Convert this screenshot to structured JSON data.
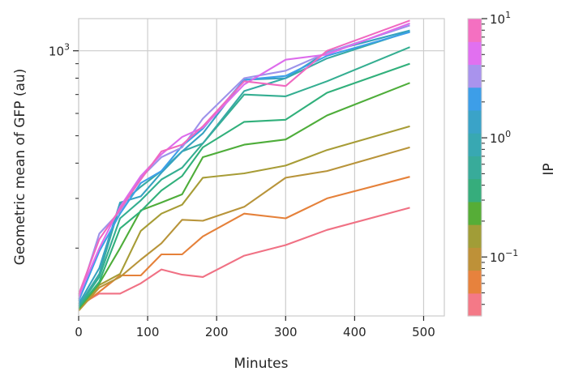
{
  "chart_data": {
    "type": "line",
    "xlabel": "Minutes",
    "ylabel": "Geometric mean of GFP (au)",
    "xlim": [
      0,
      530
    ],
    "ylim": [
      115,
      1300
    ],
    "yscale": "log",
    "grid": true,
    "x_ticks": [
      0,
      100,
      200,
      300,
      400,
      500
    ],
    "y_major_ticks": [
      {
        "value": 1000,
        "label": "10^3"
      }
    ],
    "y_minor_ticks": [
      200,
      300,
      400,
      500,
      600,
      700,
      800,
      900
    ],
    "x": [
      0,
      30,
      60,
      90,
      120,
      150,
      180,
      240,
      300,
      360,
      480
    ],
    "series": [
      {
        "color": "#f07184",
        "values": [
          125,
          138,
          138,
          150,
          168,
          161,
          158,
          188,
          205,
          232,
          278
        ]
      },
      {
        "color": "#e5813a",
        "values": [
          123,
          140,
          160,
          160,
          190,
          190,
          220,
          265,
          255,
          300,
          358
        ]
      },
      {
        "color": "#b8943a",
        "values": [
          120,
          145,
          158,
          182,
          208,
          252,
          250,
          280,
          355,
          375,
          455
        ]
      },
      {
        "color": "#a79c36",
        "values": [
          121,
          148,
          162,
          230,
          265,
          285,
          355,
          368,
          392,
          445,
          540
        ]
      },
      {
        "color": "#4ead3a",
        "values": [
          122,
          150,
          200,
          272,
          290,
          310,
          420,
          465,
          485,
          590,
          770
        ]
      },
      {
        "color": "#31b07b",
        "values": [
          123,
          152,
          235,
          270,
          320,
          360,
          455,
          560,
          570,
          710,
          900
        ]
      },
      {
        "color": "#34ae91",
        "values": [
          124,
          158,
          255,
          295,
          350,
          385,
          470,
          700,
          690,
          780,
          1030
        ]
      },
      {
        "color": "#37aaa4",
        "values": [
          125,
          162,
          285,
          330,
          375,
          440,
          470,
          720,
          800,
          940,
          1170
        ]
      },
      {
        "color": "#36a2c0",
        "values": [
          127,
          170,
          290,
          305,
          370,
          440,
          510,
          790,
          800,
          990,
          1180
        ]
      },
      {
        "color": "#3d9fe8",
        "values": [
          130,
          195,
          265,
          340,
          375,
          460,
          530,
          790,
          815,
          960,
          1165
        ]
      },
      {
        "color": "#9d92ea",
        "values": [
          132,
          225,
          270,
          355,
          420,
          455,
          575,
          800,
          850,
          985,
          1230
        ]
      },
      {
        "color": "#dd6cec",
        "values": [
          135,
          200,
          280,
          360,
          430,
          495,
          535,
          760,
          930,
          970,
          1250
        ]
      },
      {
        "color": "#f069c0",
        "values": [
          137,
          215,
          275,
          350,
          440,
          465,
          540,
          780,
          750,
          1000,
          1280
        ]
      }
    ],
    "colorbar": {
      "label": "IP",
      "scale": "log",
      "range": [
        0.032,
        10
      ],
      "tick_labels": [
        {
          "value": 0.1,
          "label": "10^−1"
        },
        {
          "value": 1,
          "label": "10^0"
        },
        {
          "value": 10,
          "label": "10^1"
        }
      ],
      "colors": [
        "#f47987",
        "#e7823d",
        "#be9138",
        "#a19d37",
        "#56ad37",
        "#36ad7c",
        "#38ab9a",
        "#38a8b2",
        "#3aa3c8",
        "#3d9ee8",
        "#a993ed",
        "#e170f0",
        "#f470c1"
      ]
    }
  }
}
